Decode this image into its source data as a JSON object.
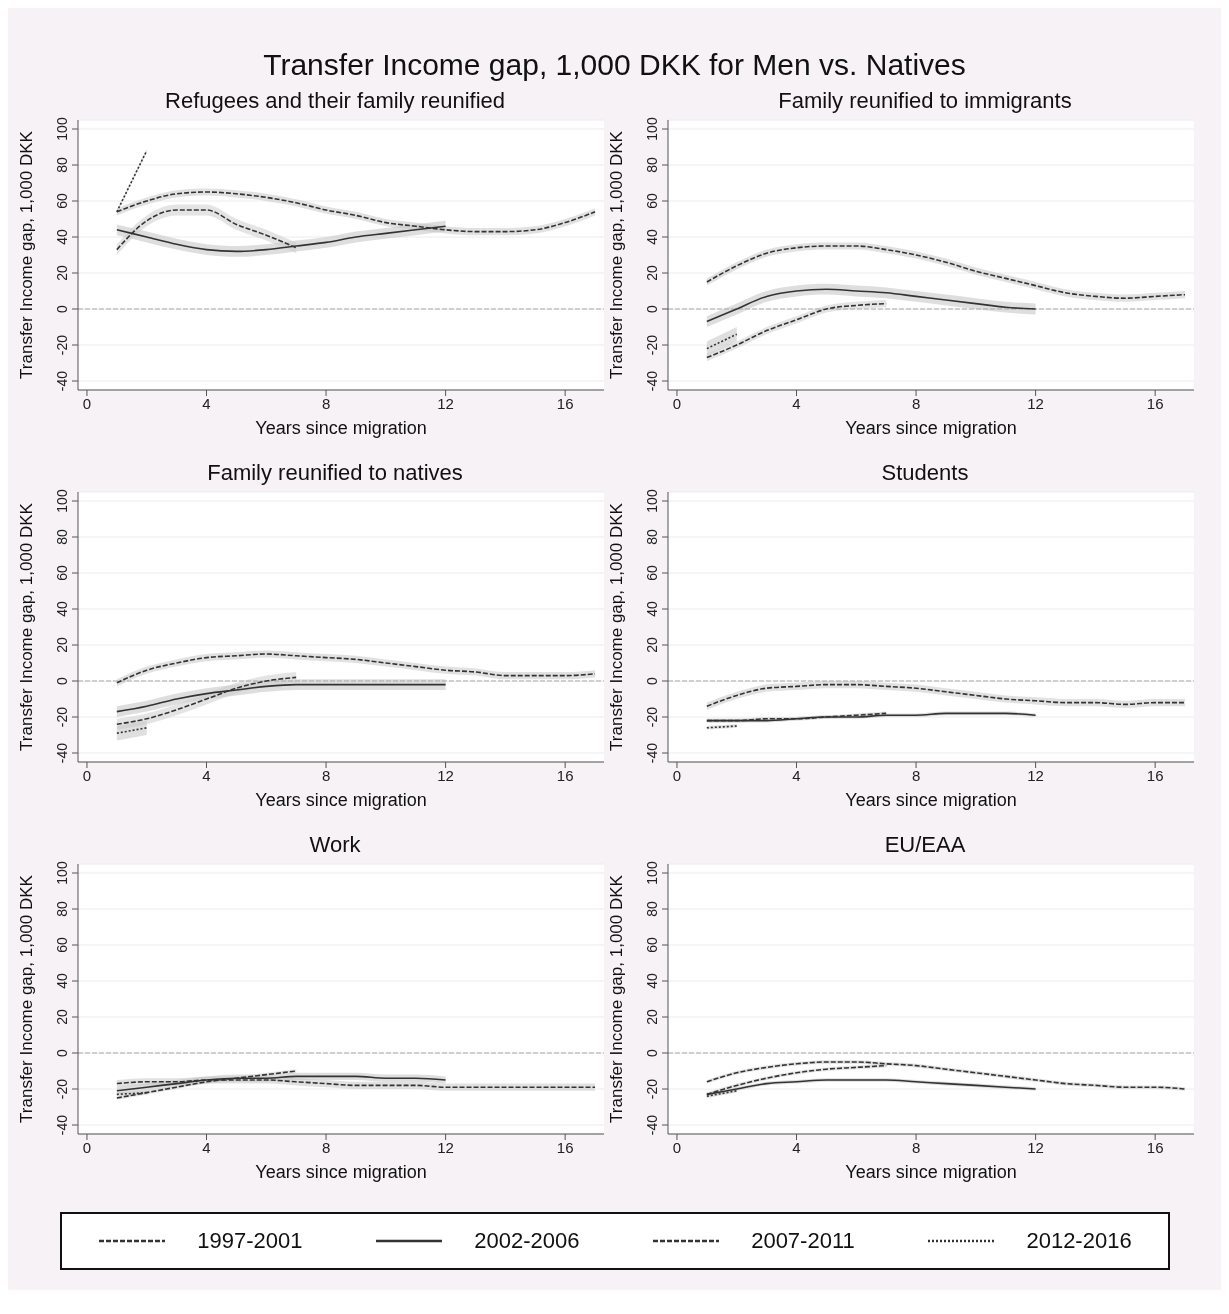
{
  "chart_data": [
    {
      "type": "line",
      "title": "Refugees and their family reunified",
      "annotations": [
        "Transfer Income gap, 1,000 DKK for Men vs. Natives"
      ],
      "xlabel": "Years since migration",
      "ylabel": "Transfer Income gap, 1,000 DKK",
      "xlim": [
        -0.3,
        17.3
      ],
      "xticks": [
        0,
        4,
        8,
        12,
        16
      ],
      "ylim": [
        -45,
        105
      ],
      "yticks": [
        -40,
        -20,
        0,
        20,
        40,
        60,
        80,
        100
      ],
      "grid": "y",
      "legend": "bottom",
      "ref_lines": [
        {
          "axis": "y",
          "value": 0,
          "color": "#aaaaaa",
          "line_style": "dashed"
        }
      ],
      "series": [
        {
          "name": "1997-2001",
          "color": "#333333",
          "line_style": "dashed",
          "x": [
            1,
            2,
            3,
            4,
            5,
            6,
            7,
            8,
            9,
            10,
            11,
            12,
            13,
            14,
            15,
            16,
            17
          ],
          "values": [
            54,
            60,
            64,
            65,
            64,
            62,
            59,
            55,
            52,
            48,
            46,
            44,
            43,
            43,
            44,
            48,
            54
          ],
          "lower": [
            52,
            58,
            62,
            63,
            62,
            60,
            57,
            53,
            50,
            46,
            44,
            42,
            41,
            41,
            42,
            46,
            52
          ],
          "upper": [
            56,
            62,
            66,
            67,
            66,
            64,
            61,
            57,
            54,
            50,
            48,
            46,
            45,
            45,
            46,
            50,
            56
          ]
        },
        {
          "name": "2002-2006",
          "color": "#333333",
          "line_style": "solid",
          "x": [
            1,
            2,
            3,
            4,
            5,
            6,
            7,
            8,
            9,
            10,
            11,
            12
          ],
          "values": [
            44,
            40,
            36,
            33,
            32,
            33,
            35,
            37,
            40,
            42,
            44,
            46
          ],
          "lower": [
            41,
            37,
            33,
            30,
            29,
            30,
            32,
            34,
            37,
            39,
            41,
            43
          ],
          "upper": [
            47,
            43,
            39,
            36,
            35,
            36,
            38,
            40,
            43,
            45,
            47,
            49
          ]
        },
        {
          "name": "2007-2011",
          "color": "#333333",
          "line_style": "dashed",
          "x": [
            1,
            2,
            3,
            4,
            5,
            6,
            7
          ],
          "values": [
            33,
            49,
            55,
            55,
            47,
            41,
            34
          ],
          "lower": [
            30,
            46,
            52,
            52,
            44,
            38,
            31
          ],
          "upper": [
            36,
            52,
            58,
            58,
            50,
            44,
            37
          ]
        },
        {
          "name": "2012-2016",
          "color": "#333333",
          "line_style": "dotted",
          "x": [
            1,
            2
          ],
          "values": [
            54,
            88
          ],
          "lower": [
            53,
            87
          ],
          "upper": [
            55,
            89
          ]
        }
      ]
    },
    {
      "type": "line",
      "title": "Family reunified to immigrants",
      "xlabel": "Years since migration",
      "ylabel": "Transfer Income gap, 1,000 DKK",
      "xlim": [
        -0.3,
        17.3
      ],
      "xticks": [
        0,
        4,
        8,
        12,
        16
      ],
      "ylim": [
        -45,
        105
      ],
      "yticks": [
        -40,
        -20,
        0,
        20,
        40,
        60,
        80,
        100
      ],
      "grid": "y",
      "ref_lines": [
        {
          "axis": "y",
          "value": 0,
          "color": "#aaaaaa",
          "line_style": "dashed"
        }
      ],
      "series": [
        {
          "color": "#333333",
          "line_style": "dashed",
          "x": [
            1,
            2,
            3,
            4,
            5,
            6,
            7,
            8,
            9,
            10,
            11,
            12,
            13,
            14,
            15,
            16,
            17
          ],
          "values": [
            15,
            24,
            31,
            34,
            35,
            35,
            33,
            30,
            26,
            21,
            17,
            13,
            9,
            7,
            6,
            7,
            8
          ],
          "lower": [
            13,
            22,
            29,
            32,
            33,
            33,
            31,
            28,
            24,
            19,
            15,
            11,
            7,
            5,
            4,
            5,
            6
          ],
          "upper": [
            17,
            26,
            33,
            36,
            37,
            37,
            35,
            32,
            28,
            23,
            19,
            15,
            11,
            9,
            8,
            9,
            10
          ]
        },
        {
          "color": "#333333",
          "line_style": "solid",
          "x": [
            1,
            2,
            3,
            4,
            5,
            6,
            7,
            8,
            9,
            10,
            11,
            12
          ],
          "values": [
            -7,
            0,
            7,
            10,
            11,
            10,
            9,
            7,
            5,
            3,
            1,
            0
          ],
          "lower": [
            -10,
            -3,
            4,
            7,
            8,
            7,
            6,
            4,
            2,
            0,
            -2,
            -3
          ],
          "upper": [
            -4,
            3,
            10,
            13,
            14,
            13,
            12,
            10,
            8,
            6,
            4,
            3
          ]
        },
        {
          "color": "#333333",
          "line_style": "dashed",
          "x": [
            1,
            2,
            3,
            4,
            5,
            6,
            7
          ],
          "values": [
            -27,
            -20,
            -12,
            -6,
            0,
            2,
            3
          ],
          "lower": [
            -29,
            -22,
            -14,
            -8,
            -2,
            0,
            1
          ],
          "upper": [
            -25,
            -18,
            -10,
            -4,
            2,
            4,
            5
          ]
        },
        {
          "color": "#333333",
          "line_style": "dotted",
          "x": [
            1,
            2
          ],
          "values": [
            -22,
            -14
          ],
          "lower": [
            -26,
            -18
          ],
          "upper": [
            -18,
            -10
          ]
        }
      ]
    },
    {
      "type": "line",
      "title": "Family reunified to natives",
      "xlabel": "Years since migration",
      "ylabel": "Transfer Income gap, 1,000 DKK",
      "xlim": [
        -0.3,
        17.3
      ],
      "xticks": [
        0,
        4,
        8,
        12,
        16
      ],
      "ylim": [
        -45,
        105
      ],
      "yticks": [
        -40,
        -20,
        0,
        20,
        40,
        60,
        80,
        100
      ],
      "grid": "y",
      "ref_lines": [
        {
          "axis": "y",
          "value": 0,
          "color": "#aaaaaa",
          "line_style": "dashed"
        }
      ],
      "series": [
        {
          "color": "#333333",
          "line_style": "dashed",
          "x": [
            1,
            2,
            3,
            4,
            5,
            6,
            7,
            8,
            9,
            10,
            11,
            12,
            13,
            14,
            15,
            16,
            17
          ],
          "values": [
            -1,
            6,
            10,
            13,
            14,
            15,
            14,
            13,
            12,
            10,
            8,
            6,
            5,
            3,
            3,
            3,
            4
          ],
          "lower": [
            -3,
            4,
            8,
            11,
            12,
            13,
            12,
            11,
            10,
            8,
            6,
            4,
            3,
            1,
            1,
            1,
            2
          ],
          "upper": [
            1,
            8,
            12,
            15,
            16,
            17,
            16,
            15,
            14,
            12,
            10,
            8,
            7,
            5,
            5,
            5,
            6
          ]
        },
        {
          "color": "#333333",
          "line_style": "solid",
          "x": [
            1,
            2,
            3,
            4,
            5,
            6,
            7,
            8,
            9,
            10,
            11,
            12
          ],
          "values": [
            -17,
            -14,
            -10,
            -7,
            -5,
            -3,
            -2,
            -2,
            -2,
            -2,
            -2,
            -2
          ],
          "lower": [
            -20,
            -17,
            -13,
            -10,
            -8,
            -6,
            -5,
            -5,
            -5,
            -5,
            -5,
            -5
          ],
          "upper": [
            -14,
            -11,
            -7,
            -4,
            -2,
            0,
            1,
            1,
            1,
            1,
            1,
            1
          ]
        },
        {
          "color": "#333333",
          "line_style": "dashed",
          "x": [
            1,
            2,
            3,
            4,
            5,
            6,
            7
          ],
          "values": [
            -24,
            -21,
            -16,
            -10,
            -4,
            0,
            2
          ],
          "lower": [
            -27,
            -24,
            -19,
            -13,
            -7,
            -3,
            -1
          ],
          "upper": [
            -21,
            -18,
            -13,
            -7,
            -1,
            3,
            5
          ]
        },
        {
          "color": "#333333",
          "line_style": "dotted",
          "x": [
            1,
            2
          ],
          "values": [
            -29,
            -26
          ],
          "lower": [
            -33,
            -30
          ],
          "upper": [
            -25,
            -22
          ]
        }
      ]
    },
    {
      "type": "line",
      "title": "Students",
      "xlabel": "Years since migration",
      "ylabel": "Transfer Income gap, 1,000 DKK",
      "xlim": [
        -0.3,
        17.3
      ],
      "xticks": [
        0,
        4,
        8,
        12,
        16
      ],
      "ylim": [
        -45,
        105
      ],
      "yticks": [
        -40,
        -20,
        0,
        20,
        40,
        60,
        80,
        100
      ],
      "grid": "y",
      "ref_lines": [
        {
          "axis": "y",
          "value": 0,
          "color": "#aaaaaa",
          "line_style": "dashed"
        }
      ],
      "series": [
        {
          "color": "#333333",
          "line_style": "dashed",
          "x": [
            1,
            2,
            3,
            4,
            5,
            6,
            7,
            8,
            9,
            10,
            11,
            12,
            13,
            14,
            15,
            16,
            17
          ],
          "values": [
            -14,
            -8,
            -4,
            -3,
            -2,
            -2,
            -3,
            -4,
            -6,
            -8,
            -10,
            -11,
            -12,
            -12,
            -13,
            -12,
            -12
          ],
          "lower": [
            -16,
            -10,
            -6,
            -5,
            -4,
            -4,
            -5,
            -6,
            -8,
            -10,
            -12,
            -13,
            -14,
            -14,
            -15,
            -14,
            -14
          ],
          "upper": [
            -12,
            -6,
            -2,
            -1,
            0,
            0,
            -1,
            -2,
            -4,
            -6,
            -8,
            -9,
            -10,
            -10,
            -11,
            -10,
            -10
          ]
        },
        {
          "color": "#333333",
          "line_style": "solid",
          "x": [
            1,
            2,
            3,
            4,
            5,
            6,
            7,
            8,
            9,
            10,
            11,
            12
          ],
          "values": [
            -22,
            -22,
            -22,
            -21,
            -20,
            -20,
            -19,
            -19,
            -18,
            -18,
            -18,
            -19
          ],
          "lower": [
            -23,
            -23,
            -23,
            -22,
            -21,
            -21,
            -20,
            -20,
            -19,
            -19,
            -19,
            -20
          ],
          "upper": [
            -21,
            -21,
            -21,
            -20,
            -19,
            -19,
            -18,
            -18,
            -17,
            -17,
            -17,
            -18
          ]
        },
        {
          "color": "#333333",
          "line_style": "dashed",
          "x": [
            1,
            2,
            3,
            4,
            5,
            6,
            7
          ],
          "values": [
            -22,
            -22,
            -21,
            -21,
            -20,
            -19,
            -18
          ],
          "lower": [
            -23,
            -23,
            -22,
            -22,
            -21,
            -20,
            -19
          ],
          "upper": [
            -21,
            -21,
            -20,
            -20,
            -19,
            -18,
            -17
          ]
        },
        {
          "color": "#333333",
          "line_style": "dotted",
          "x": [
            1,
            2
          ],
          "values": [
            -26,
            -25
          ],
          "lower": [
            -27,
            -26
          ],
          "upper": [
            -25,
            -24
          ]
        }
      ]
    },
    {
      "type": "line",
      "title": "Work",
      "xlabel": "Years since migration",
      "ylabel": "Transfer Income gap, 1,000 DKK",
      "xlim": [
        -0.3,
        17.3
      ],
      "xticks": [
        0,
        4,
        8,
        12,
        16
      ],
      "ylim": [
        -45,
        105
      ],
      "yticks": [
        -40,
        -20,
        0,
        20,
        40,
        60,
        80,
        100
      ],
      "grid": "y",
      "ref_lines": [
        {
          "axis": "y",
          "value": 0,
          "color": "#aaaaaa",
          "line_style": "dashed"
        }
      ],
      "series": [
        {
          "color": "#333333",
          "line_style": "dashed",
          "x": [
            1,
            2,
            3,
            4,
            5,
            6,
            7,
            8,
            9,
            10,
            11,
            12,
            13,
            14,
            15,
            16,
            17
          ],
          "values": [
            -17,
            -16,
            -16,
            -15,
            -15,
            -15,
            -16,
            -17,
            -18,
            -18,
            -18,
            -19,
            -19,
            -19,
            -19,
            -19,
            -19
          ],
          "lower": [
            -19,
            -18,
            -18,
            -17,
            -17,
            -17,
            -18,
            -19,
            -20,
            -20,
            -20,
            -21,
            -21,
            -21,
            -21,
            -21,
            -21
          ],
          "upper": [
            -15,
            -14,
            -14,
            -13,
            -13,
            -13,
            -14,
            -15,
            -16,
            -16,
            -16,
            -17,
            -17,
            -17,
            -17,
            -17,
            -17
          ]
        },
        {
          "color": "#333333",
          "line_style": "solid",
          "x": [
            1,
            2,
            3,
            4,
            5,
            6,
            7,
            8,
            9,
            10,
            11,
            12
          ],
          "values": [
            -21,
            -19,
            -17,
            -15,
            -14,
            -14,
            -13,
            -13,
            -13,
            -14,
            -14,
            -15
          ],
          "lower": [
            -23,
            -21,
            -19,
            -17,
            -16,
            -16,
            -15,
            -15,
            -15,
            -16,
            -16,
            -17
          ],
          "upper": [
            -19,
            -17,
            -15,
            -13,
            -12,
            -12,
            -11,
            -11,
            -11,
            -12,
            -12,
            -13
          ]
        },
        {
          "color": "#333333",
          "line_style": "dashed",
          "x": [
            1,
            2,
            3,
            4,
            5,
            6,
            7
          ],
          "values": [
            -25,
            -22,
            -19,
            -16,
            -14,
            -12,
            -10
          ],
          "lower": [
            -26,
            -23,
            -20,
            -17,
            -15,
            -13,
            -11
          ],
          "upper": [
            -24,
            -21,
            -18,
            -15,
            -13,
            -11,
            -9
          ]
        },
        {
          "color": "#333333",
          "line_style": "dotted",
          "x": [
            1,
            2
          ],
          "values": [
            -23,
            -22
          ],
          "lower": [
            -24,
            -23
          ],
          "upper": [
            -22,
            -21
          ]
        }
      ]
    },
    {
      "type": "line",
      "title": "EU/EAA",
      "xlabel": "Years since migration",
      "ylabel": "Transfer Income gap, 1,000 DKK",
      "xlim": [
        -0.3,
        17.3
      ],
      "xticks": [
        0,
        4,
        8,
        12,
        16
      ],
      "ylim": [
        -45,
        105
      ],
      "yticks": [
        -40,
        -20,
        0,
        20,
        40,
        60,
        80,
        100
      ],
      "grid": "y",
      "ref_lines": [
        {
          "axis": "y",
          "value": 0,
          "color": "#aaaaaa",
          "line_style": "dashed"
        }
      ],
      "series": [
        {
          "color": "#333333",
          "line_style": "dashed",
          "x": [
            1,
            2,
            3,
            4,
            5,
            6,
            7,
            8,
            9,
            10,
            11,
            12,
            13,
            14,
            15,
            16,
            17
          ],
          "values": [
            -16,
            -11,
            -8,
            -6,
            -5,
            -5,
            -6,
            -7,
            -9,
            -11,
            -13,
            -15,
            -17,
            -18,
            -19,
            -19,
            -20
          ],
          "lower": [
            -17,
            -12,
            -9,
            -7,
            -6,
            -6,
            -7,
            -8,
            -10,
            -12,
            -14,
            -16,
            -18,
            -19,
            -20,
            -20,
            -21
          ],
          "upper": [
            -15,
            -10,
            -7,
            -5,
            -4,
            -4,
            -5,
            -6,
            -8,
            -10,
            -12,
            -14,
            -16,
            -17,
            -18,
            -18,
            -19
          ]
        },
        {
          "color": "#333333",
          "line_style": "solid",
          "x": [
            1,
            2,
            3,
            4,
            5,
            6,
            7,
            8,
            9,
            10,
            11,
            12
          ],
          "values": [
            -23,
            -20,
            -17,
            -16,
            -15,
            -15,
            -15,
            -16,
            -17,
            -18,
            -19,
            -20
          ],
          "lower": [
            -24,
            -21,
            -18,
            -17,
            -16,
            -16,
            -16,
            -17,
            -18,
            -19,
            -20,
            -21
          ],
          "upper": [
            -22,
            -19,
            -16,
            -15,
            -14,
            -14,
            -14,
            -15,
            -16,
            -17,
            -18,
            -19
          ]
        },
        {
          "color": "#333333",
          "line_style": "dashed",
          "x": [
            1,
            2,
            3,
            4,
            5,
            6,
            7
          ],
          "values": [
            -23,
            -18,
            -14,
            -11,
            -9,
            -8,
            -7
          ],
          "lower": [
            -24,
            -19,
            -15,
            -12,
            -10,
            -9,
            -8
          ],
          "upper": [
            -22,
            -17,
            -13,
            -10,
            -8,
            -7,
            -6
          ]
        },
        {
          "color": "#333333",
          "line_style": "dotted",
          "x": [
            1,
            2
          ],
          "values": [
            -24,
            -21
          ],
          "lower": [
            -25,
            -22
          ],
          "upper": [
            -23,
            -20
          ]
        }
      ]
    }
  ]
}
